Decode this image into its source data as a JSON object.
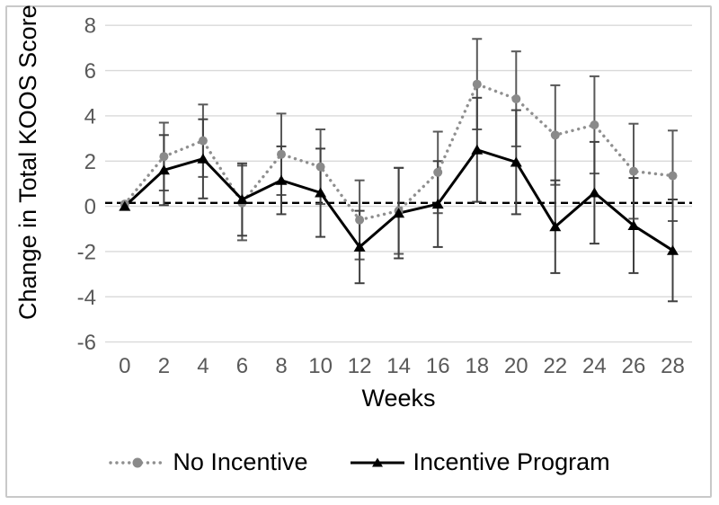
{
  "chart_data": {
    "type": "line",
    "title": "",
    "xlabel": "Weeks",
    "ylabel": "Change in Total KOOS Score",
    "x": [
      0,
      2,
      4,
      6,
      8,
      10,
      12,
      14,
      16,
      18,
      20,
      22,
      24,
      26,
      28
    ],
    "ylim": [
      -7,
      8.5
    ],
    "yticks": [
      8,
      6,
      4,
      2,
      0,
      -2,
      -4,
      -6
    ],
    "grid": "horizontal-only",
    "gridline_color": "#d9d9d9",
    "tick_label_color": "#595959",
    "legend_position": "bottom",
    "reference_line": {
      "y": 0.15,
      "style": "dashed",
      "color": "#000000"
    },
    "series": [
      {
        "name": "No Incentive",
        "line_style": "dotted",
        "marker": "circle",
        "color": "#8f8f8f",
        "marker_color": "#8a8a8a",
        "error_bar_color": "#595959",
        "values": [
          0.1,
          2.2,
          2.9,
          0.15,
          2.3,
          1.75,
          -0.6,
          -0.2,
          1.5,
          5.4,
          4.75,
          3.15,
          3.6,
          1.55,
          1.35
        ],
        "errors": [
          0,
          1.5,
          1.6,
          1.65,
          1.8,
          1.65,
          1.75,
          1.9,
          1.8,
          2.0,
          2.1,
          2.2,
          2.15,
          2.1,
          2.0
        ]
      },
      {
        "name": "Incentive Program",
        "line_style": "solid",
        "marker": "triangle",
        "color": "#000000",
        "marker_color": "#000000",
        "error_bar_color": "#404040",
        "values": [
          0.0,
          1.6,
          2.1,
          0.3,
          1.15,
          0.6,
          -1.8,
          -0.3,
          0.1,
          2.5,
          1.95,
          -0.9,
          0.6,
          -0.85,
          -1.95
        ],
        "errors": [
          0,
          1.55,
          1.75,
          1.6,
          1.5,
          1.95,
          1.6,
          2.0,
          1.9,
          2.3,
          2.3,
          2.05,
          2.25,
          2.1,
          2.25
        ]
      }
    ]
  },
  "frame": {
    "border_color": "#c9c9c9"
  }
}
